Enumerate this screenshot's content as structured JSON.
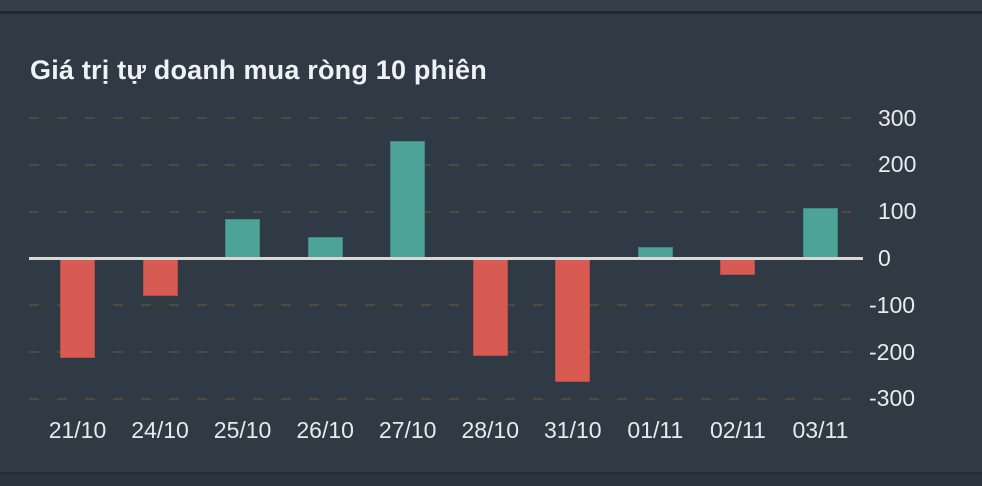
{
  "chart": {
    "title": "Giá trị tự doanh mua ròng 10 phiên"
  },
  "chart_data": {
    "type": "bar",
    "title": "Giá trị tự doanh mua ròng 10 phiên",
    "categories": [
      "21/10",
      "24/10",
      "25/10",
      "26/10",
      "27/10",
      "28/10",
      "31/10",
      "01/11",
      "02/11",
      "03/11"
    ],
    "values": [
      -212,
      -80,
      85,
      45,
      252,
      -208,
      -264,
      25,
      -35,
      107
    ],
    "series_note": "single series; positive = net buy (teal), negative = net sell (red)",
    "y_ticks": [
      300,
      200,
      100,
      0,
      -100,
      -200,
      -300
    ],
    "ylim": [
      -300,
      300
    ],
    "xlabel": "",
    "ylabel": "",
    "legend": "none",
    "grid": "horizontal dashed lines at each 100, solid light line at 0",
    "y_axis_side": "right",
    "colors": {
      "positive_bar": "#4da398",
      "negative_bar": "#d75b53",
      "axis_line": "#d9d8d6",
      "gridline": "#54483a",
      "background": "#2f3a45",
      "label_text": "#e9ecee",
      "title_text": "#eef2f4"
    }
  }
}
